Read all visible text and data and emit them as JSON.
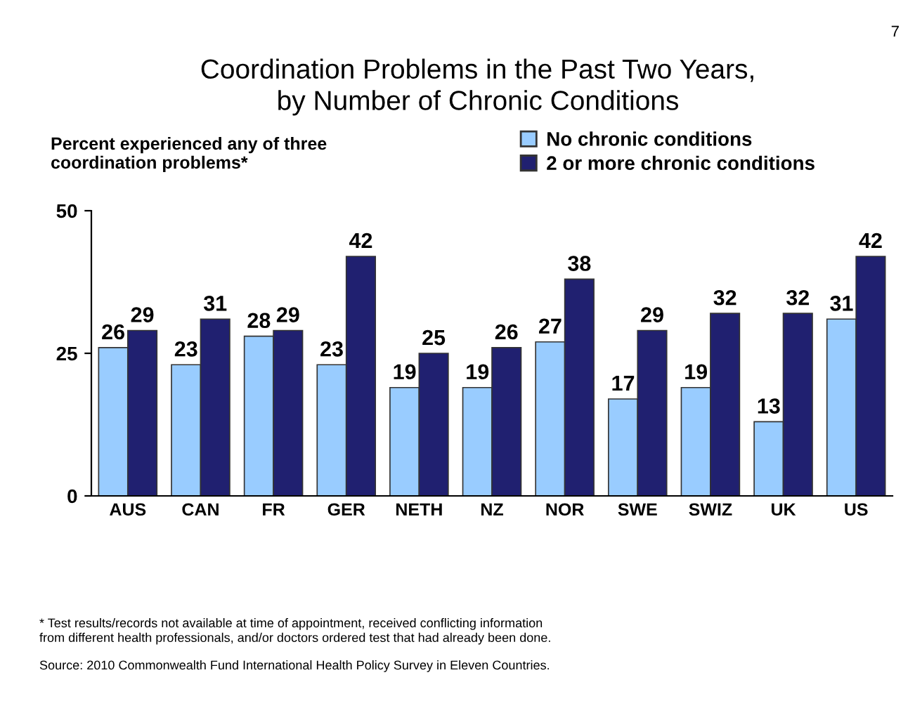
{
  "chart_data": {
    "type": "bar",
    "title": "Coordination Problems in the Past Two Years,\nby Number of Chronic Conditions",
    "ylabel": "Percent experienced any of three\ncoordination problems*",
    "categories": [
      "AUS",
      "CAN",
      "FR",
      "GER",
      "NETH",
      "NZ",
      "NOR",
      "SWE",
      "SWIZ",
      "UK",
      "US"
    ],
    "series": [
      {
        "name": "No chronic conditions",
        "color": "#99ccff",
        "values": [
          26,
          23,
          28,
          23,
          19,
          19,
          27,
          17,
          19,
          13,
          31
        ]
      },
      {
        "name": "2 or more chronic conditions",
        "color": "#202070",
        "values": [
          29,
          31,
          29,
          42,
          25,
          26,
          38,
          29,
          32,
          32,
          42
        ]
      }
    ],
    "ylim": [
      0,
      50
    ],
    "yticks": [
      0,
      25,
      50
    ],
    "grid": false,
    "legend": "top right",
    "data_labels": true,
    "annotations": [
      "7",
      "* Test results/records not available at time of appointment, received conflicting information\nfrom different health professionals, and/or doctors ordered test that had already been done.",
      "Source: 2010 Commonwealth Fund International Health Policy Survey in Eleven Countries."
    ]
  }
}
